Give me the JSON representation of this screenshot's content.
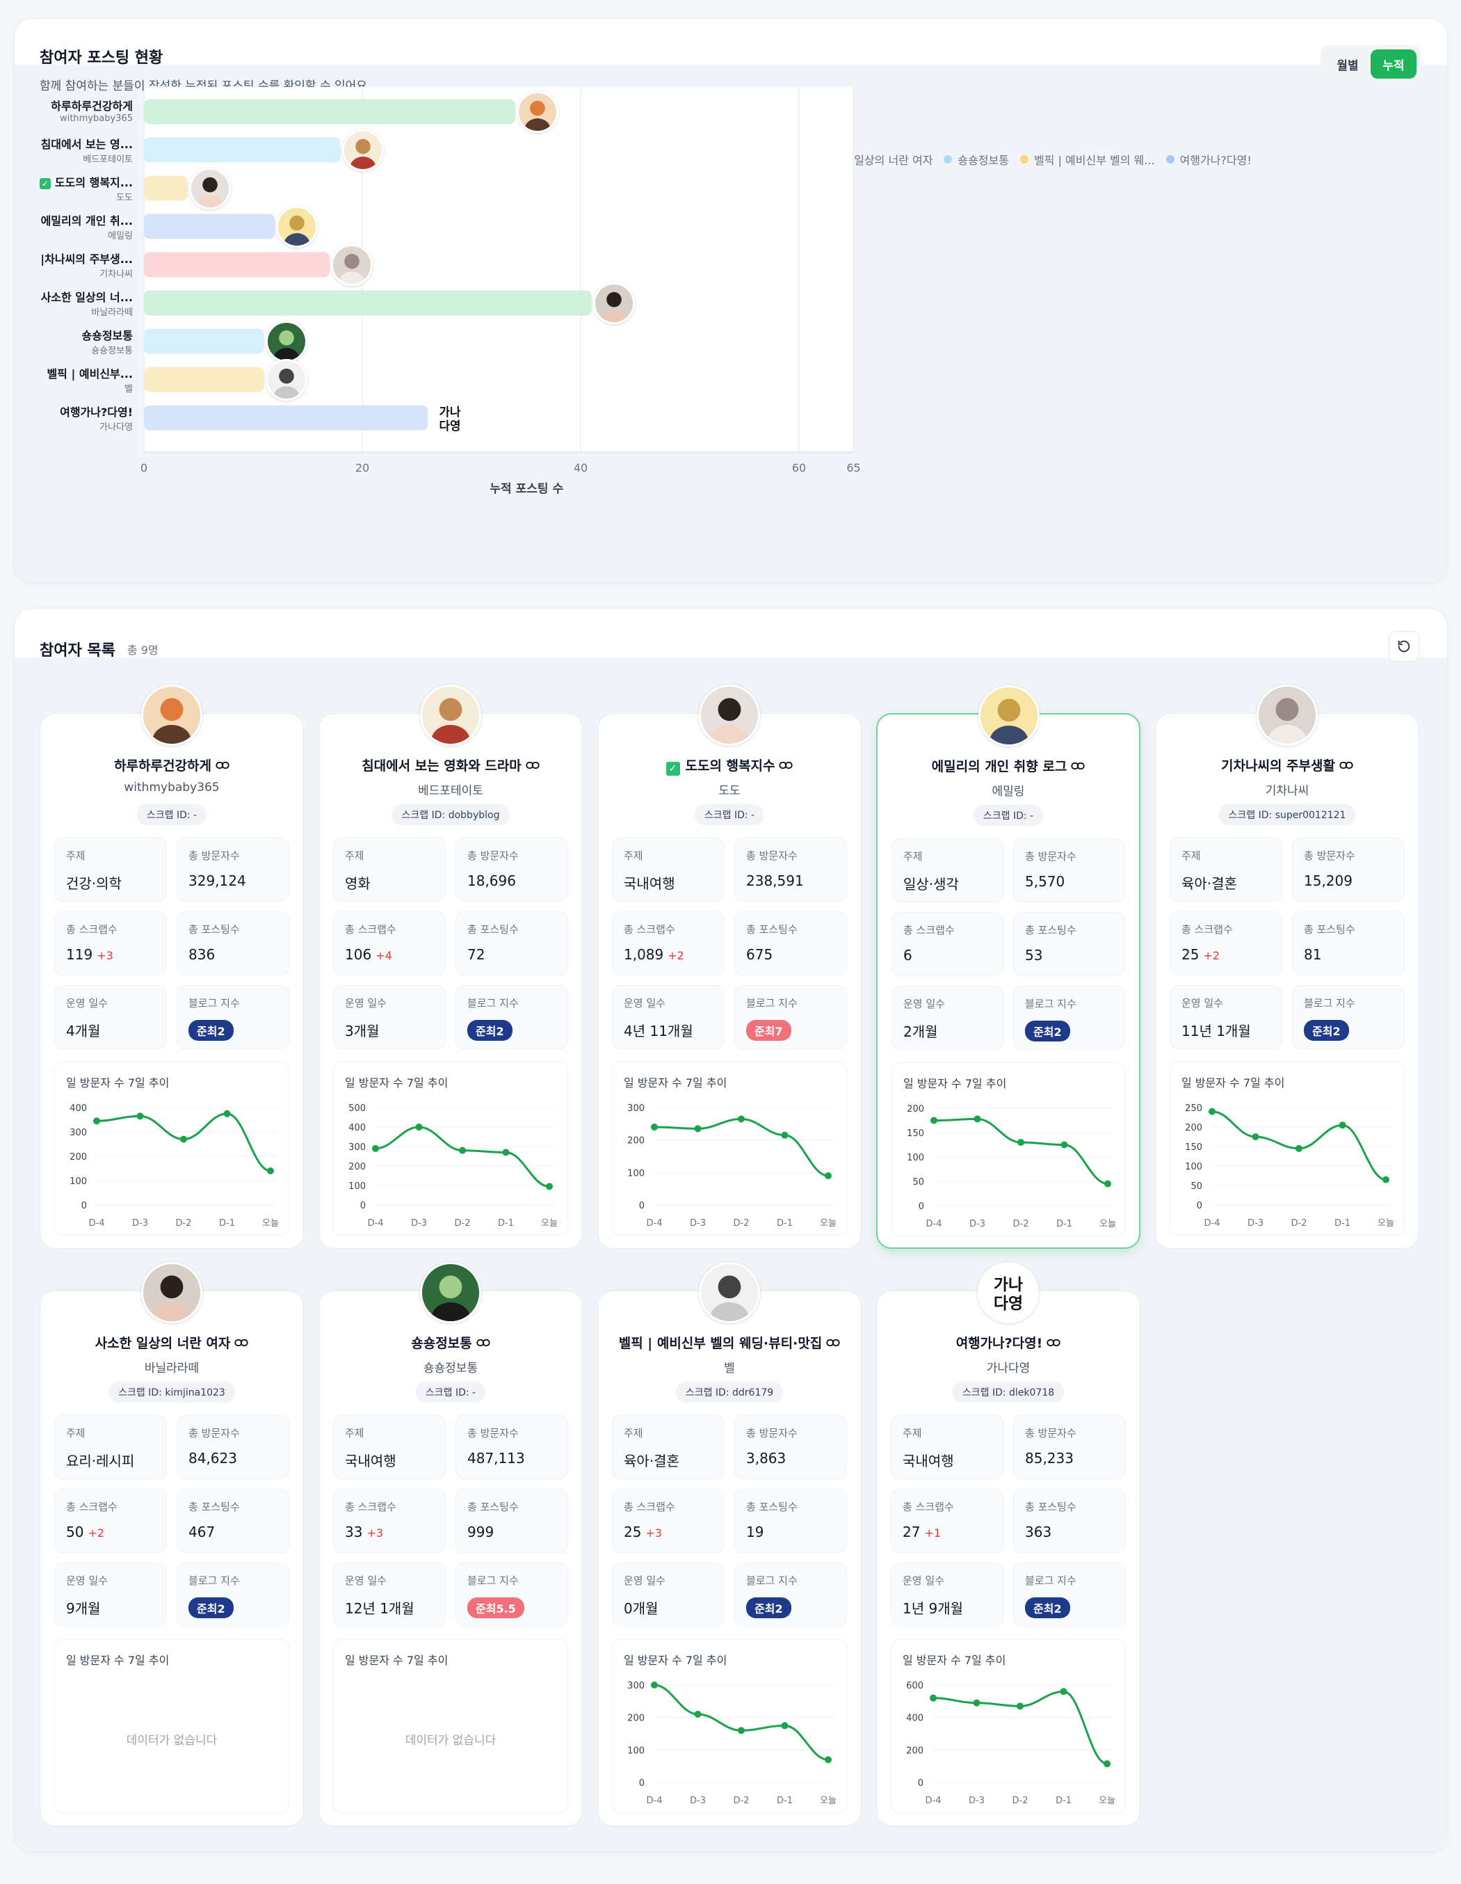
{
  "chart_section": {
    "title": "참여자 포스팅 현황",
    "subtitle": "함께 참여하는 분들이 작성한 누적된 포스팅 수를 확인할 수 있어요.",
    "toggle": {
      "monthly": "월별",
      "cumulative": "누적",
      "active": "누적"
    }
  },
  "chart_data": {
    "type": "bar",
    "orientation": "horizontal",
    "xlabel": "누적 포스팅 수",
    "xlim": [
      0,
      65
    ],
    "xticks": [
      0,
      20,
      40,
      60,
      65
    ],
    "legend": [
      "하루하루건강하게",
      "침대에서 보는 영화와 ...",
      "도도의 행복지수",
      "에밀리의 개인 취향 로그",
      "기차나씨의 주부생활",
      "사소한 일상의 너란 여자",
      "숑숑정보통",
      "벨픽 | 예비신부 벨의 웨...",
      "여행가나?다영!"
    ],
    "categories": [
      {
        "name": "하루하루건강하게",
        "sub": "withmybaby365"
      },
      {
        "name": "침대에서 보는 영...",
        "sub": "베드포테이토"
      },
      {
        "name": "도도의 행복지...",
        "sub": "도도",
        "check": true
      },
      {
        "name": "에밀리의 개인 취...",
        "sub": "에밀링"
      },
      {
        "name": "|차나씨의 주부생...",
        "sub": "기차나씨"
      },
      {
        "name": "사소한 일상의 너...",
        "sub": "바닐라라떼"
      },
      {
        "name": "숑숑정보통",
        "sub": "숑숑정보통"
      },
      {
        "name": "벨픽 | 예비신부...",
        "sub": "벨"
      },
      {
        "name": "여행가나?다영!",
        "sub": "가나다영"
      }
    ],
    "values": [
      34,
      18,
      4,
      12,
      17,
      41,
      11,
      11,
      26
    ],
    "colors": [
      "#cdf1da",
      "#d5f0fb",
      "#faecc4",
      "#d6e4fb",
      "#fdd6d8",
      "#cdf1da",
      "#d5f0fb",
      "#faecc4",
      "#d6e4fb"
    ],
    "dot_colors": [
      "#9ee6b8",
      "#a9def5",
      "#f6d77a",
      "#a9c6f5",
      "#f9a3a8",
      "#9ee6b8",
      "#a9def5",
      "#f6d77a",
      "#a9c6f5"
    ]
  },
  "list_section": {
    "title": "참여자 목록",
    "count": "총 9명"
  },
  "labels": {
    "topic": "주제",
    "visitors": "총 방문자수",
    "scraps": "총 스크랩수",
    "posts": "총 포스팅수",
    "days": "운영 일수",
    "index": "블로그 지수",
    "trend": "일 방문자 수 7일 추이",
    "empty": "데이터가 없습니다"
  },
  "x_days": [
    "D-4",
    "D-3",
    "D-2",
    "D-1",
    "오늘"
  ],
  "participants": [
    {
      "name": "하루하루건강하게",
      "sub": "withmybaby365",
      "scrap_id": "스크랩 ID: -",
      "topic": "건강·의학",
      "visitors": "329,124",
      "scraps": "119",
      "scraps_delta": "+3",
      "posts": "836",
      "days": "4개월",
      "index": "준최2",
      "index_color": "#1e3a8a",
      "trend": {
        "yticks": [
          0,
          100,
          200,
          300,
          400
        ],
        "ymax": 400,
        "values": [
          345,
          365,
          270,
          375,
          140
        ]
      }
    },
    {
      "name": "침대에서 보는 영화와 드라마",
      "sub": "베드포테이토",
      "scrap_id": "스크랩 ID: dobbyblog",
      "topic": "영화",
      "visitors": "18,696",
      "scraps": "106",
      "scraps_delta": "+4",
      "posts": "72",
      "days": "3개월",
      "index": "준최2",
      "index_color": "#1e3a8a",
      "trend": {
        "yticks": [
          0,
          100,
          200,
          300,
          400,
          500
        ],
        "ymax": 500,
        "values": [
          290,
          400,
          280,
          270,
          95
        ]
      }
    },
    {
      "name": "도도의 행복지수",
      "sub": "도도",
      "check": true,
      "scrap_id": "스크랩 ID: -",
      "topic": "국내여행",
      "visitors": "238,591",
      "scraps": "1,089",
      "scraps_delta": "+2",
      "posts": "675",
      "days": "4년 11개월",
      "index": "준최7",
      "index_color": "#f2707a",
      "trend": {
        "yticks": [
          0,
          100,
          200,
          300
        ],
        "ymax": 300,
        "values": [
          240,
          235,
          265,
          215,
          90
        ]
      }
    },
    {
      "name": "에밀리의 개인 취향 로그",
      "sub": "에밀링",
      "scrap_id": "스크랩 ID: -",
      "topic": "일상·생각",
      "visitors": "5,570",
      "scraps": "6",
      "scraps_delta": "",
      "posts": "53",
      "days": "2개월",
      "index": "준최2",
      "index_color": "#1e3a8a",
      "active": true,
      "trend": {
        "yticks": [
          0,
          50,
          100,
          150,
          200
        ],
        "ymax": 200,
        "values": [
          175,
          178,
          130,
          125,
          45
        ]
      }
    },
    {
      "name": "기차나씨의 주부생활",
      "sub": "기차나씨",
      "scrap_id": "스크랩 ID: super0012121",
      "topic": "육아·결혼",
      "visitors": "15,209",
      "scraps": "25",
      "scraps_delta": "+2",
      "posts": "81",
      "days": "11년 1개월",
      "index": "준최2",
      "index_color": "#1e3a8a",
      "trend": {
        "yticks": [
          0,
          50,
          100,
          150,
          200,
          250
        ],
        "ymax": 250,
        "values": [
          240,
          175,
          145,
          205,
          65
        ]
      }
    },
    {
      "name": "사소한 일상의 너란 여자",
      "sub": "바닐라라떼",
      "scrap_id": "스크랩 ID: kimjina1023",
      "topic": "요리·레시피",
      "visitors": "84,623",
      "scraps": "50",
      "scraps_delta": "+2",
      "posts": "467",
      "days": "9개월",
      "index": "준최2",
      "index_color": "#1e3a8a",
      "trend": null
    },
    {
      "name": "숑숑정보통",
      "sub": "숑숑정보통",
      "scrap_id": "스크랩 ID: -",
      "topic": "국내여행",
      "visitors": "487,113",
      "scraps": "33",
      "scraps_delta": "+3",
      "posts": "999",
      "days": "12년 1개월",
      "index": "준최5.5",
      "index_color": "#f2707a",
      "trend": null
    },
    {
      "name": "벨픽 | 예비신부 벨의 웨딩·뷰티·맛집",
      "sub": "벨",
      "scrap_id": "스크랩 ID: ddr6179",
      "topic": "육아·결혼",
      "visitors": "3,863",
      "scraps": "25",
      "scraps_delta": "+3",
      "posts": "19",
      "days": "0개월",
      "index": "준최2",
      "index_color": "#1e3a8a",
      "trend": {
        "yticks": [
          0,
          100,
          200,
          300
        ],
        "ymax": 300,
        "values": [
          300,
          210,
          160,
          175,
          70
        ]
      }
    },
    {
      "name": "여행가나?다영!",
      "sub": "가나다영",
      "scrap_id": "스크랩 ID: dlek0718",
      "topic": "국내여행",
      "visitors": "85,233",
      "scraps": "27",
      "scraps_delta": "+1",
      "posts": "363",
      "days": "1년 9개월",
      "index": "준최2",
      "index_color": "#1e3a8a",
      "trend": {
        "yticks": [
          0,
          200,
          400,
          600
        ],
        "ymax": 600,
        "values": [
          520,
          490,
          470,
          560,
          115
        ]
      }
    }
  ]
}
